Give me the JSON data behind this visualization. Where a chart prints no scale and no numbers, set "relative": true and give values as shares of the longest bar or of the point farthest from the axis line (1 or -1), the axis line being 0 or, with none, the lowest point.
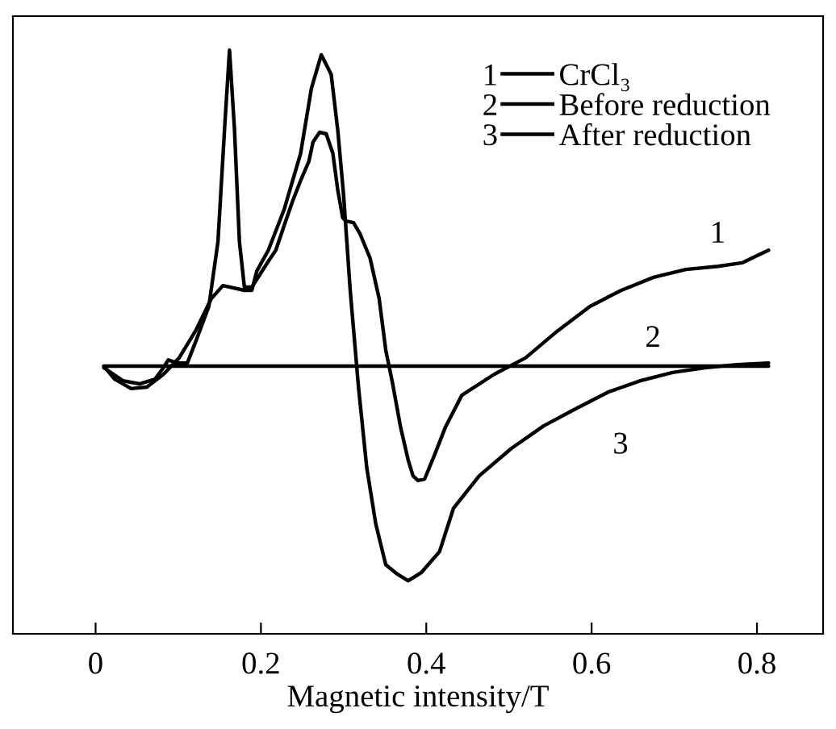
{
  "chart_data": {
    "type": "line",
    "relative": true,
    "xlabel": "Magnetic intensity/T",
    "xlim": [
      -0.1,
      0.88
    ],
    "xticks": [
      0,
      0.2,
      0.4,
      0.6,
      0.8
    ],
    "tick_labels": "x",
    "grid": false,
    "legend": "top right",
    "marker": "none",
    "line_style": "solid",
    "series": [
      {
        "name": "CrCl₃",
        "color": "#000000",
        "x": [
          0.01,
          0.033,
          0.053,
          0.072,
          0.082,
          0.088,
          0.098,
          0.111,
          0.121,
          0.137,
          0.148,
          0.156,
          0.162,
          0.168,
          0.174,
          0.18,
          0.189,
          0.199,
          0.209,
          0.218,
          0.228,
          0.238,
          0.248,
          0.258,
          0.263,
          0.271,
          0.279,
          0.287,
          0.293,
          0.299,
          0.303,
          0.312,
          0.32,
          0.332,
          0.343,
          0.351,
          0.359,
          0.369,
          0.378,
          0.384,
          0.39,
          0.398,
          0.41,
          0.423,
          0.443,
          0.482,
          0.52,
          0.559,
          0.598,
          0.636,
          0.675,
          0.714,
          0.753,
          0.782,
          0.794,
          0.814
        ],
        "values": [
          -0.005,
          -0.046,
          -0.056,
          -0.041,
          -0.005,
          0.02,
          0.01,
          0.01,
          0.077,
          0.189,
          0.393,
          0.75,
          1.0,
          0.75,
          0.393,
          0.25,
          0.25,
          0.291,
          0.332,
          0.367,
          0.444,
          0.52,
          0.587,
          0.648,
          0.709,
          0.74,
          0.735,
          0.673,
          0.556,
          0.469,
          0.459,
          0.454,
          0.418,
          0.342,
          0.214,
          0.051,
          -0.051,
          -0.194,
          -0.296,
          -0.347,
          -0.362,
          -0.357,
          -0.281,
          -0.194,
          -0.092,
          -0.026,
          0.026,
          0.112,
          0.189,
          0.24,
          0.281,
          0.306,
          0.316,
          0.327,
          0.342,
          0.367
        ]
      },
      {
        "name": "Before reduction",
        "color": "#000000",
        "x": [
          0.01,
          0.814
        ],
        "values": [
          0,
          0
        ]
      },
      {
        "name": "After reduction",
        "color": "#000000",
        "x": [
          0.01,
          0.023,
          0.043,
          0.062,
          0.082,
          0.101,
          0.121,
          0.14,
          0.154,
          0.18,
          0.189,
          0.195,
          0.209,
          0.228,
          0.248,
          0.261,
          0.273,
          0.285,
          0.293,
          0.3,
          0.308,
          0.318,
          0.328,
          0.339,
          0.351,
          0.365,
          0.378,
          0.394,
          0.416,
          0.433,
          0.464,
          0.503,
          0.542,
          0.582,
          0.62,
          0.659,
          0.698,
          0.737,
          0.776,
          0.814
        ],
        "values": [
          0,
          -0.041,
          -0.071,
          -0.066,
          -0.026,
          0.026,
          0.112,
          0.214,
          0.255,
          0.24,
          0.24,
          0.301,
          0.367,
          0.495,
          0.673,
          0.878,
          0.985,
          0.923,
          0.745,
          0.541,
          0.24,
          -0.066,
          -0.321,
          -0.5,
          -0.628,
          -0.658,
          -0.679,
          -0.653,
          -0.587,
          -0.449,
          -0.347,
          -0.26,
          -0.189,
          -0.133,
          -0.082,
          -0.046,
          -0.02,
          -0.005,
          0.005,
          0.01
        ]
      }
    ],
    "annotations": [
      "1",
      "2",
      "3"
    ]
  }
}
